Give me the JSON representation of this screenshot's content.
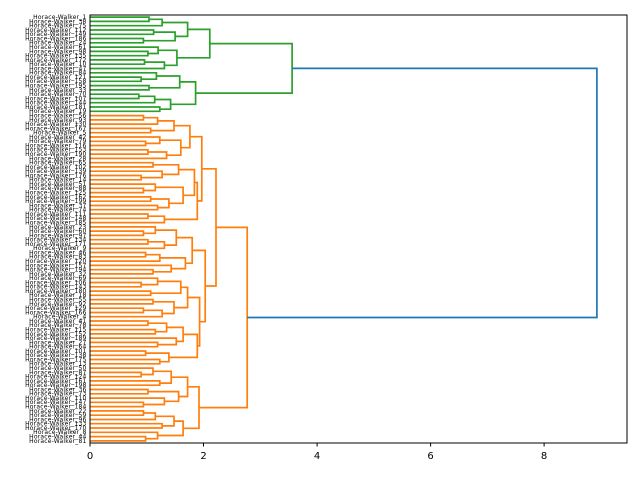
{
  "colors": {
    "background": "#ffffff",
    "axes_frame": "#000000",
    "tick_label": "#000000",
    "leaf_label": "#000000",
    "cluster_top": "#2ca02c",
    "cluster_bottom": "#ff7f0e",
    "root_link": "#1f77b4"
  },
  "chart_data": {
    "type": "dendrogram",
    "orientation": "right",
    "title": "",
    "xlabel": "",
    "ylabel": "",
    "grid": false,
    "legend": false,
    "x_ticks": [
      "0",
      "2",
      "4",
      "6",
      "8"
    ],
    "x_tick_values": [
      0,
      2,
      4,
      6,
      8
    ],
    "xlim": [
      0,
      9.46
    ],
    "root_merge_distance": 8.93,
    "clusters": [
      {
        "name": "top-cluster",
        "color": "#2ca02c",
        "leaf_count": 23,
        "root_distance": 3.56
      },
      {
        "name": "bottom-cluster",
        "color": "#ff7f0e",
        "leaf_count": 77,
        "root_distance": 2.77
      }
    ],
    "leaf_labels": [
      "Horace-Walker_1",
      "Horace-Walker_38",
      "Horace-Walker_75",
      "Horace-Walker_112",
      "Horace-Walker_149",
      "Horace-Walker_186",
      "Horace-Walker_24",
      "Horace-Walker_61",
      "Horace-Walker_98",
      "Horace-Walker_135",
      "Horace-Walker_172",
      "Horace-Walker_10",
      "Horace-Walker_47",
      "Horace-Walker_84",
      "Horace-Walker_121",
      "Horace-Walker_158",
      "Horace-Walker_195",
      "Horace-Walker_33",
      "Horace-Walker_70",
      "Horace-Walker_107",
      "Horace-Walker_144",
      "Horace-Walker_181",
      "Horace-Walker_19",
      "Horace-Walker_56",
      "Horace-Walker_93",
      "Horace-Walker_130",
      "Horace-Walker_167",
      "Horace-Walker_5",
      "Horace-Walker_42",
      "Horace-Walker_79",
      "Horace-Walker_116",
      "Horace-Walker_153",
      "Horace-Walker_190",
      "Horace-Walker_28",
      "Horace-Walker_65",
      "Horace-Walker_102",
      "Horace-Walker_139",
      "Horace-Walker_176",
      "Horace-Walker_14",
      "Horace-Walker_51",
      "Horace-Walker_88",
      "Horace-Walker_125",
      "Horace-Walker_162",
      "Horace-Walker_199",
      "Horace-Walker_37",
      "Horace-Walker_74",
      "Horace-Walker_111",
      "Horace-Walker_148",
      "Horace-Walker_185",
      "Horace-Walker_23",
      "Horace-Walker_60",
      "Horace-Walker_97",
      "Horace-Walker_134",
      "Horace-Walker_171",
      "Horace-Walker_9",
      "Horace-Walker_46",
      "Horace-Walker_83",
      "Horace-Walker_120",
      "Horace-Walker_157",
      "Horace-Walker_194",
      "Horace-Walker_32",
      "Horace-Walker_69",
      "Horace-Walker_106",
      "Horace-Walker_143",
      "Horace-Walker_180",
      "Horace-Walker_18",
      "Horace-Walker_55",
      "Horace-Walker_92",
      "Horace-Walker_129",
      "Horace-Walker_166",
      "Horace-Walker_4",
      "Horace-Walker_41",
      "Horace-Walker_78",
      "Horace-Walker_115",
      "Horace-Walker_152",
      "Horace-Walker_189",
      "Horace-Walker_27",
      "Horace-Walker_64",
      "Horace-Walker_101",
      "Horace-Walker_138",
      "Horace-Walker_175",
      "Horace-Walker_13",
      "Horace-Walker_50",
      "Horace-Walker_87",
      "Horace-Walker_124",
      "Horace-Walker_161",
      "Horace-Walker_198",
      "Horace-Walker_36",
      "Horace-Walker_73",
      "Horace-Walker_110",
      "Horace-Walker_147",
      "Horace-Walker_184",
      "Horace-Walker_22",
      "Horace-Walker_59",
      "Horace-Walker_96",
      "Horace-Walker_133",
      "Horace-Walker_170",
      "Horace-Walker_8",
      "Horace-Walker_44",
      "Horace-Walker_81"
    ],
    "tree": [
      8.93,
      [
        3.56,
        [
          2.11,
          [
            1.72,
            [
              1.27,
              [
                1.04,
                0,
                1
              ],
              2
            ],
            [
              1.5,
              [
                1.12,
                3,
                4
              ],
              [
                0.94,
                5,
                6
              ]
            ]
          ],
          [
            1.53,
            [
              1.2,
              7,
              [
                1.02,
                8,
                9
              ]
            ],
            [
              1.31,
              [
                0.96,
                10,
                11
              ],
              12
            ]
          ]
        ],
        [
          1.86,
          [
            1.58,
            [
              1.17,
              13,
              [
                0.9,
                14,
                15
              ]
            ],
            [
              1.04,
              16,
              17
            ]
          ],
          [
            1.42,
            [
              1.14,
              [
                0.86,
                18,
                19
              ],
              20
            ],
            [
              1.23,
              21,
              22
            ]
          ]
        ]
      ],
      [
        2.77,
        [
          2.22,
          [
            1.97,
            [
              1.76,
              [
                1.48,
                [
                  1.19,
                  [
                    0.94,
                    23,
                    24
                  ],
                  25
                ],
                [
                  1.07,
                  26,
                  27
                ]
              ],
              [
                1.6,
                [
                  1.23,
                  28,
                  [
                    0.98,
                    29,
                    30
                  ]
                ],
                [
                  1.35,
                  [
                    1.02,
                    31,
                    32
                  ],
                  33
                ]
              ]
            ],
            [
              1.89,
              [
                1.84,
                [
                  1.56,
                  [
                    1.11,
                    34,
                    35
                  ],
                  [
                    1.27,
                    36,
                    [
                      0.9,
                      37,
                      38
                    ]
                  ]
                ],
                [
                  1.64,
                  [
                    1.15,
                    39,
                    [
                      0.94,
                      40,
                      41
                    ]
                  ],
                  [
                    1.39,
                    [
                      1.07,
                      42,
                      43
                    ],
                    [
                      1.19,
                      44,
                      45
                    ]
                  ]
                ]
              ],
              [
                1.31,
                [
                  1.02,
                  46,
                  47
                ],
                48
              ]
            ]
          ],
          [
            2.03,
            [
              1.8,
              [
                1.52,
                [
                  1.15,
                  49,
                  [
                    0.94,
                    50,
                    51
                  ]
                ],
                [
                  1.31,
                  [
                    1.02,
                    52,
                    53
                  ],
                  54
                ]
              ],
              [
                1.68,
                [
                  1.23,
                  [
                    0.98,
                    55,
                    56
                  ],
                  57
                ],
                [
                  1.43,
                  58,
                  [
                    1.11,
                    59,
                    60
                  ]
                ]
              ]
            ],
            [
              1.93,
              [
                1.72,
                [
                  1.6,
                  [
                    1.19,
                    61,
                    [
                      0.9,
                      62,
                      63
                    ]
                  ],
                  [
                    1.07,
                    64,
                    65
                  ]
                ],
                [
                  1.48,
                  [
                    1.11,
                    66,
                    67
                  ],
                  [
                    1.27,
                    [
                      0.94,
                      68,
                      69
                    ],
                    70
                  ]
                ]
              ],
              [
                1.89,
                [
                  1.64,
                  [
                    1.35,
                    [
                      1.02,
                      71,
                      72
                    ],
                    [
                      1.15,
                      73,
                      74
                    ]
                  ],
                  [
                    1.52,
                    75,
                    [
                      1.19,
                      76,
                      77
                    ]
                  ]
                ],
                [
                  1.39,
                  [
                    0.98,
                    78,
                    79
                  ],
                  [
                    1.23,
                    80,
                    81
                  ]
                ]
              ]
            ]
          ]
        ],
        [
          1.92,
          [
            1.72,
            [
              1.43,
              [
                1.11,
                82,
                [
                  0.9,
                  83,
                  84
                ]
              ],
              [
                1.23,
                85,
                86
              ]
            ],
            [
              1.56,
              [
                1.02,
                87,
                88
              ],
              [
                1.31,
                89,
                [
                  0.94,
                  90,
                  91
                ]
              ]
            ]
          ],
          [
            1.64,
            [
              1.48,
              [
                1.15,
                [
                  0.94,
                  92,
                  93
                ],
                94
              ],
              [
                1.27,
                95,
                96
              ]
            ],
            [
              1.19,
              97,
              [
                0.98,
                98,
                99
              ]
            ]
          ]
        ]
      ]
    ]
  }
}
